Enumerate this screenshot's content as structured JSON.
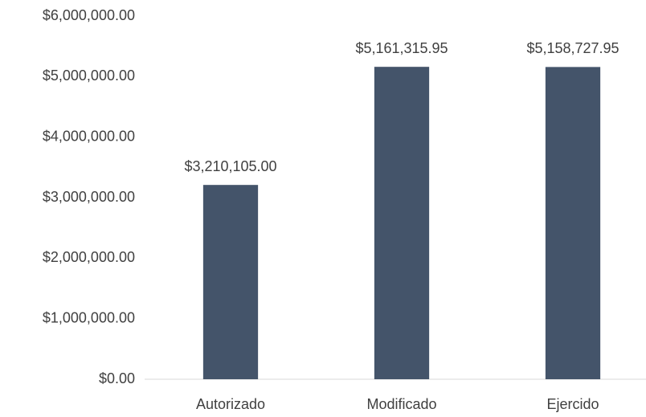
{
  "chart_data": {
    "type": "bar",
    "categories": [
      "Autorizado",
      "Modificado",
      "Ejercido"
    ],
    "values": [
      3210105,
      5161315.95,
      5158727.95
    ],
    "value_labels": [
      "$3,210,105.00",
      "$5,161,315.95",
      "$5,158,727.95"
    ],
    "color": "#44546a",
    "ylim": [
      0,
      6000000
    ],
    "yticks": [
      {
        "value": 0,
        "label": "$0.00"
      },
      {
        "value": 1000000,
        "label": "$1,000,000.00"
      },
      {
        "value": 2000000,
        "label": "$2,000,000.00"
      },
      {
        "value": 3000000,
        "label": "$3,000,000.00"
      },
      {
        "value": 4000000,
        "label": "$4,000,000.00"
      },
      {
        "value": 5000000,
        "label": "$5,000,000.00"
      },
      {
        "value": 6000000,
        "label": "$6,000,000.00"
      }
    ],
    "grid": false
  }
}
